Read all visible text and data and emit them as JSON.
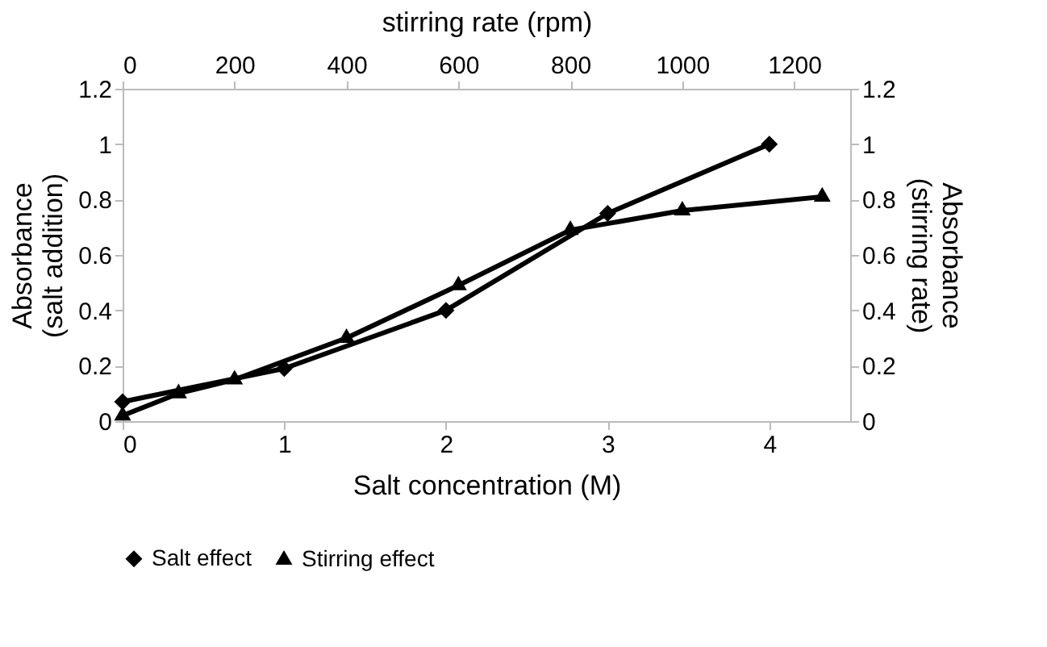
{
  "chart_data": {
    "type": "line",
    "xlabel": "Salt concentration (M)",
    "ylabel": "Absorbance (salt addition)",
    "y2label": "Absorbance (stirring rate)",
    "x2label": "stirring rate (rpm)",
    "xlim": [
      0,
      4.5
    ],
    "xticks": [
      0,
      1,
      2,
      3,
      4
    ],
    "x2lim": [
      0,
      1300
    ],
    "x2ticks": [
      0,
      200,
      400,
      600,
      800,
      1000,
      1200
    ],
    "ylim": [
      0,
      1.2
    ],
    "yticks": [
      0,
      0.2,
      0.4,
      0.6,
      0.8,
      1,
      1.2
    ],
    "y2lim": [
      0,
      1.2
    ],
    "y2ticks": [
      0,
      0.2,
      0.4,
      0.6,
      0.8,
      1,
      1.2
    ],
    "grid": false,
    "legend": "bottom",
    "series": [
      {
        "name": "Salt effect",
        "color": "#000000",
        "marker": "diamond",
        "x": [
          0,
          1,
          2,
          3,
          4
        ],
        "values": [
          0.07,
          0.19,
          0.4,
          0.75,
          1.0
        ]
      },
      {
        "name": "Stirring effect",
        "color": "#000000",
        "marker": "triangle",
        "axis": "x2",
        "x": [
          0,
          100,
          200,
          400,
          600,
          800,
          1000,
          1250
        ],
        "values": [
          0.02,
          0.1,
          0.15,
          0.3,
          0.49,
          0.69,
          0.76,
          0.81
        ]
      }
    ]
  }
}
